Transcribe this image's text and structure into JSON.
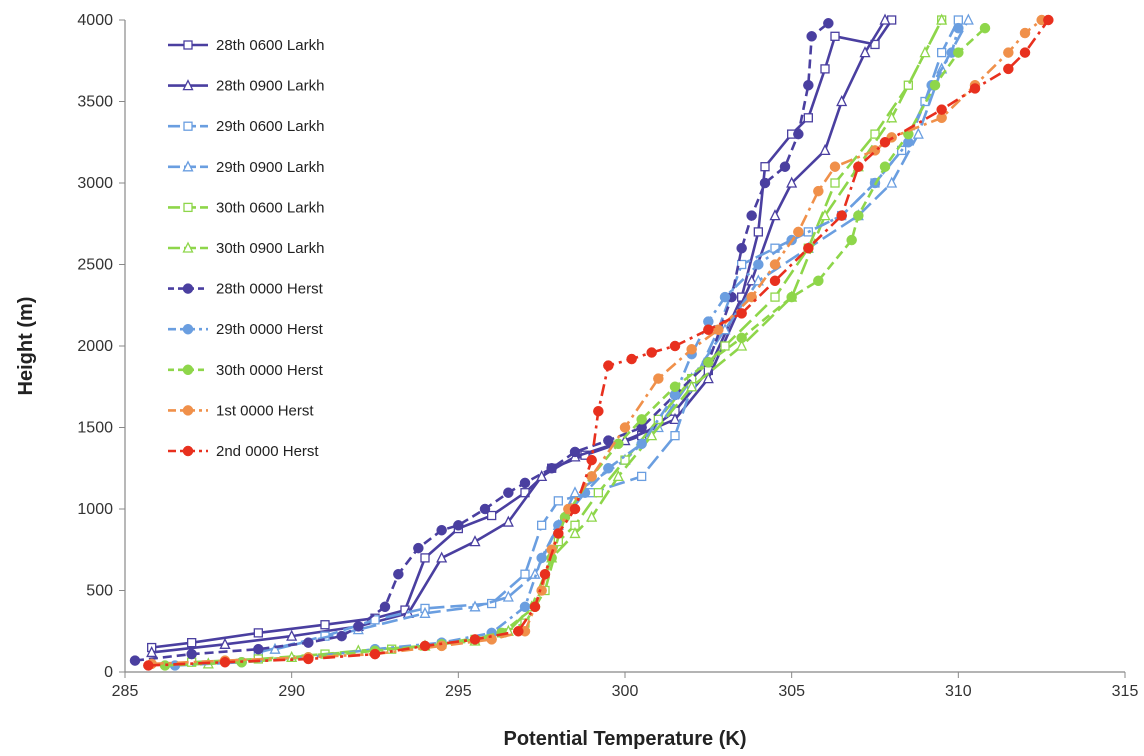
{
  "chart_data": {
    "type": "line",
    "title": "",
    "xlabel": "Potential Temperature (K)",
    "ylabel": "Height (m)",
    "xlim": [
      285,
      315
    ],
    "ylim": [
      0,
      4000
    ],
    "xticks": [
      "285",
      "290",
      "295",
      "300",
      "305",
      "310",
      "315"
    ],
    "yticks": [
      "0",
      "500",
      "1000",
      "1500",
      "2000",
      "2500",
      "3000",
      "3500",
      "4000"
    ],
    "grid": false,
    "legend_position": "top-left",
    "series": [
      {
        "name": "28th 0600 Larkh",
        "color": "#4a3fa0",
        "dash": "solid",
        "marker": "square",
        "points": [
          [
            285.8,
            150
          ],
          [
            287.0,
            180
          ],
          [
            289.0,
            240
          ],
          [
            291.0,
            290
          ],
          [
            292.5,
            330
          ],
          [
            293.4,
            380
          ],
          [
            294.0,
            700
          ],
          [
            295.0,
            880
          ],
          [
            296.0,
            960
          ],
          [
            297.0,
            1100
          ],
          [
            297.8,
            1250
          ],
          [
            298.8,
            1330
          ],
          [
            300.5,
            1450
          ],
          [
            301.5,
            1600
          ],
          [
            302.5,
            1850
          ],
          [
            303.5,
            2300
          ],
          [
            304.0,
            2700
          ],
          [
            304.2,
            3100
          ],
          [
            305.0,
            3300
          ],
          [
            305.5,
            3400
          ],
          [
            306.0,
            3700
          ],
          [
            306.3,
            3900
          ],
          [
            307.5,
            3850
          ],
          [
            308.0,
            4000
          ]
        ]
      },
      {
        "name": "28th 0900 Larkh",
        "color": "#4a3fa0",
        "dash": "solid",
        "marker": "triangle",
        "points": [
          [
            285.8,
            120
          ],
          [
            288.0,
            170
          ],
          [
            290.0,
            220
          ],
          [
            292.0,
            280
          ],
          [
            293.5,
            360
          ],
          [
            294.5,
            700
          ],
          [
            295.5,
            800
          ],
          [
            296.5,
            920
          ],
          [
            297.5,
            1200
          ],
          [
            298.5,
            1320
          ],
          [
            300.0,
            1420
          ],
          [
            301.5,
            1550
          ],
          [
            302.5,
            1800
          ],
          [
            303.8,
            2400
          ],
          [
            304.5,
            2800
          ],
          [
            305.0,
            3000
          ],
          [
            306.0,
            3200
          ],
          [
            306.5,
            3500
          ],
          [
            307.2,
            3800
          ],
          [
            307.8,
            4000
          ]
        ]
      },
      {
        "name": "29th 0600 Larkh",
        "color": "#6a9ee0",
        "dash": "longdash",
        "marker": "square",
        "points": [
          [
            289.0,
            120
          ],
          [
            291.0,
            220
          ],
          [
            292.5,
            320
          ],
          [
            294.0,
            390
          ],
          [
            296.0,
            420
          ],
          [
            297.0,
            600
          ],
          [
            297.5,
            900
          ],
          [
            298.0,
            1050
          ],
          [
            299.0,
            1100
          ],
          [
            300.5,
            1200
          ],
          [
            301.5,
            1450
          ],
          [
            302.0,
            1750
          ],
          [
            302.8,
            2100
          ],
          [
            303.5,
            2500
          ],
          [
            304.5,
            2600
          ],
          [
            305.5,
            2700
          ],
          [
            306.5,
            2800
          ],
          [
            307.5,
            3000
          ],
          [
            308.3,
            3200
          ],
          [
            309.0,
            3500
          ],
          [
            309.5,
            3800
          ],
          [
            310.0,
            4000
          ]
        ]
      },
      {
        "name": "29th 0900 Larkh",
        "color": "#6a9ee0",
        "dash": "longdash",
        "marker": "triangle",
        "points": [
          [
            289.5,
            140
          ],
          [
            292.0,
            260
          ],
          [
            294.0,
            360
          ],
          [
            295.5,
            400
          ],
          [
            296.5,
            460
          ],
          [
            297.3,
            600
          ],
          [
            298.0,
            900
          ],
          [
            298.5,
            1100
          ],
          [
            300.0,
            1300
          ],
          [
            301.0,
            1500
          ],
          [
            302.0,
            1800
          ],
          [
            303.0,
            2100
          ],
          [
            304.0,
            2400
          ],
          [
            305.5,
            2600
          ],
          [
            307.0,
            2800
          ],
          [
            308.0,
            3000
          ],
          [
            308.8,
            3300
          ],
          [
            309.5,
            3700
          ],
          [
            310.3,
            4000
          ]
        ]
      },
      {
        "name": "30th 0600 Larkh",
        "color": "#8ed64a",
        "dash": "longdash",
        "marker": "square",
        "points": [
          [
            287.0,
            60
          ],
          [
            289.0,
            80
          ],
          [
            291.0,
            110
          ],
          [
            293.0,
            140
          ],
          [
            294.5,
            170
          ],
          [
            295.5,
            200
          ],
          [
            296.3,
            240
          ],
          [
            297.0,
            300
          ],
          [
            297.6,
            500
          ],
          [
            298.0,
            800
          ],
          [
            298.5,
            900
          ],
          [
            299.2,
            1100
          ],
          [
            300.0,
            1300
          ],
          [
            301.0,
            1550
          ],
          [
            302.0,
            1800
          ],
          [
            303.0,
            2000
          ],
          [
            304.5,
            2300
          ],
          [
            305.5,
            2600
          ],
          [
            306.3,
            3000
          ],
          [
            307.5,
            3300
          ],
          [
            308.5,
            3600
          ],
          [
            309.5,
            4000
          ]
        ]
      },
      {
        "name": "30th 0900 Larkh",
        "color": "#8ed64a",
        "dash": "longdash",
        "marker": "triangle",
        "points": [
          [
            287.5,
            50
          ],
          [
            290.0,
            90
          ],
          [
            292.0,
            130
          ],
          [
            294.0,
            160
          ],
          [
            295.5,
            190
          ],
          [
            296.5,
            250
          ],
          [
            297.2,
            400
          ],
          [
            297.8,
            700
          ],
          [
            298.5,
            850
          ],
          [
            299.0,
            950
          ],
          [
            299.8,
            1200
          ],
          [
            300.8,
            1450
          ],
          [
            302.0,
            1750
          ],
          [
            303.5,
            2000
          ],
          [
            305.0,
            2300
          ],
          [
            306.0,
            2800
          ],
          [
            307.0,
            3100
          ],
          [
            308.0,
            3400
          ],
          [
            309.0,
            3800
          ],
          [
            309.5,
            4000
          ]
        ]
      },
      {
        "name": "28th 0000 Herst",
        "color": "#4a3fa0",
        "dash": "dashed",
        "marker": "circle",
        "points": [
          [
            285.3,
            70
          ],
          [
            287.0,
            110
          ],
          [
            289.0,
            140
          ],
          [
            290.5,
            180
          ],
          [
            291.5,
            220
          ],
          [
            292.0,
            280
          ],
          [
            292.8,
            400
          ],
          [
            293.2,
            600
          ],
          [
            293.8,
            760
          ],
          [
            294.5,
            870
          ],
          [
            295.0,
            900
          ],
          [
            295.8,
            1000
          ],
          [
            296.5,
            1100
          ],
          [
            297.0,
            1160
          ],
          [
            297.8,
            1250
          ],
          [
            298.5,
            1350
          ],
          [
            299.5,
            1420
          ],
          [
            300.5,
            1500
          ],
          [
            301.5,
            1700
          ],
          [
            302.5,
            1900
          ],
          [
            303.2,
            2300
          ],
          [
            303.5,
            2600
          ],
          [
            303.8,
            2800
          ],
          [
            304.2,
            3000
          ],
          [
            304.8,
            3100
          ],
          [
            305.2,
            3300
          ],
          [
            305.5,
            3600
          ],
          [
            305.6,
            3900
          ],
          [
            306.1,
            3980
          ]
        ]
      },
      {
        "name": "29th 0000 Herst",
        "color": "#6a9ee0",
        "dash": "dashdot",
        "marker": "circle",
        "points": [
          [
            286.5,
            40
          ],
          [
            288.5,
            60
          ],
          [
            290.5,
            90
          ],
          [
            292.5,
            140
          ],
          [
            294.5,
            180
          ],
          [
            296.0,
            240
          ],
          [
            297.0,
            400
          ],
          [
            297.5,
            700
          ],
          [
            298.0,
            900
          ],
          [
            298.8,
            1100
          ],
          [
            299.5,
            1250
          ],
          [
            300.5,
            1400
          ],
          [
            301.5,
            1700
          ],
          [
            302.0,
            1950
          ],
          [
            302.5,
            2150
          ],
          [
            303.0,
            2300
          ],
          [
            304.0,
            2500
          ],
          [
            305.0,
            2650
          ],
          [
            306.5,
            2800
          ],
          [
            307.5,
            3000
          ],
          [
            308.5,
            3250
          ],
          [
            309.2,
            3600
          ],
          [
            309.8,
            3800
          ],
          [
            310.0,
            3950
          ]
        ]
      },
      {
        "name": "30th 0000 Herst",
        "color": "#8ed64a",
        "dash": "dashed",
        "marker": "circle",
        "points": [
          [
            286.2,
            40
          ],
          [
            288.5,
            60
          ],
          [
            290.5,
            90
          ],
          [
            292.5,
            130
          ],
          [
            294.5,
            170
          ],
          [
            296.3,
            240
          ],
          [
            297.3,
            400
          ],
          [
            297.8,
            700
          ],
          [
            298.2,
            950
          ],
          [
            299.0,
            1200
          ],
          [
            299.8,
            1400
          ],
          [
            300.5,
            1550
          ],
          [
            301.5,
            1750
          ],
          [
            302.5,
            1900
          ],
          [
            303.5,
            2050
          ],
          [
            305.0,
            2300
          ],
          [
            305.8,
            2400
          ],
          [
            306.8,
            2650
          ],
          [
            307.0,
            2800
          ],
          [
            307.8,
            3100
          ],
          [
            308.5,
            3300
          ],
          [
            309.3,
            3600
          ],
          [
            310.0,
            3800
          ],
          [
            310.8,
            3950
          ]
        ]
      },
      {
        "name": "1st 0000 Herst",
        "color": "#f0904a",
        "dash": "dashdot",
        "marker": "circle",
        "points": [
          [
            285.8,
            50
          ],
          [
            288.0,
            70
          ],
          [
            290.5,
            90
          ],
          [
            292.5,
            110
          ],
          [
            294.5,
            160
          ],
          [
            296.0,
            200
          ],
          [
            297.0,
            250
          ],
          [
            297.5,
            500
          ],
          [
            297.8,
            750
          ],
          [
            298.3,
            1000
          ],
          [
            299.0,
            1200
          ],
          [
            300.0,
            1500
          ],
          [
            301.0,
            1800
          ],
          [
            302.0,
            1980
          ],
          [
            302.8,
            2100
          ],
          [
            303.8,
            2300
          ],
          [
            304.5,
            2500
          ],
          [
            305.2,
            2700
          ],
          [
            305.8,
            2950
          ],
          [
            306.3,
            3100
          ],
          [
            307.5,
            3200
          ],
          [
            308.0,
            3280
          ],
          [
            309.5,
            3400
          ],
          [
            310.5,
            3600
          ],
          [
            311.5,
            3800
          ],
          [
            312.0,
            3920
          ],
          [
            312.5,
            4000
          ]
        ]
      },
      {
        "name": "2nd 0000 Herst",
        "color": "#e8301e",
        "dash": "dashdot",
        "marker": "circle",
        "points": [
          [
            285.7,
            40
          ],
          [
            288.0,
            60
          ],
          [
            290.5,
            80
          ],
          [
            292.5,
            110
          ],
          [
            294.0,
            160
          ],
          [
            295.5,
            200
          ],
          [
            296.8,
            250
          ],
          [
            297.3,
            400
          ],
          [
            297.6,
            600
          ],
          [
            298.0,
            850
          ],
          [
            298.5,
            1000
          ],
          [
            299.0,
            1300
          ],
          [
            299.2,
            1600
          ],
          [
            299.5,
            1880
          ],
          [
            300.2,
            1920
          ],
          [
            300.8,
            1960
          ],
          [
            301.5,
            2000
          ],
          [
            302.5,
            2100
          ],
          [
            303.5,
            2200
          ],
          [
            304.5,
            2400
          ],
          [
            305.5,
            2600
          ],
          [
            306.5,
            2800
          ],
          [
            307.0,
            3100
          ],
          [
            307.8,
            3250
          ],
          [
            309.5,
            3450
          ],
          [
            310.5,
            3580
          ],
          [
            311.5,
            3700
          ],
          [
            312.0,
            3800
          ],
          [
            312.7,
            4000
          ]
        ]
      }
    ]
  }
}
